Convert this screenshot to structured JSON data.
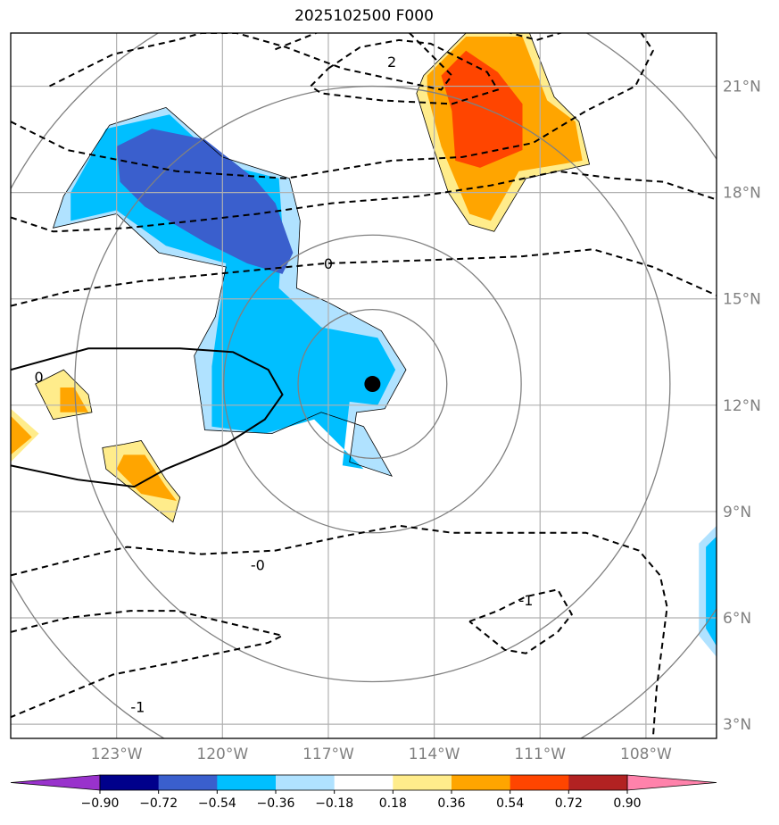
{
  "chart_data": {
    "type": "heatmap",
    "title": "2025102500 F000",
    "xlabel": "",
    "ylabel": "",
    "xlim": [
      -126,
      -106
    ],
    "ylim": [
      2.6,
      22.5
    ],
    "lon_ticks": [
      -123,
      -120,
      -117,
      -114,
      -111,
      -108
    ],
    "lon_labels": [
      "123°W",
      "120°W",
      "117°W",
      "114°W",
      "111°W",
      "108°W"
    ],
    "lat_ticks": [
      3,
      6,
      9,
      12,
      15,
      18,
      21
    ],
    "lat_labels": [
      "3°N",
      "6°N",
      "9°N",
      "12°N",
      "15°N",
      "18°N",
      "21°N"
    ],
    "grid": true,
    "center_marker": {
      "lon": -115.75,
      "lat": 12.6
    },
    "range_rings": [
      {
        "lat_radius": 2.1
      },
      {
        "lat_radius": 4.2
      },
      {
        "lat_radius": 8.4
      },
      {
        "lat_radius": 11.6
      }
    ],
    "colorbar": {
      "levels": [
        -0.9,
        -0.72,
        -0.54,
        -0.36,
        -0.18,
        0.18,
        0.36,
        0.54,
        0.72,
        0.9
      ],
      "labels": [
        "−0.90",
        "−0.72",
        "−0.54",
        "−0.36",
        "−0.18",
        "0.18",
        "0.36",
        "0.54",
        "0.72",
        "0.90"
      ],
      "colors": [
        "#9932cc",
        "#00008b",
        "#3a5fcd",
        "#00bfff",
        "#b0e2ff",
        "#ffffff",
        "#ffec8b",
        "#ffa500",
        "#ff4500",
        "#b22222",
        "#ff82ab"
      ],
      "extend": "both"
    },
    "contour_labels": [
      {
        "text": "2",
        "lon": -115.2,
        "lat": 21.7
      },
      {
        "text": "0",
        "lon": -117.0,
        "lat": 16.0
      },
      {
        "text": "0",
        "lon": -125.2,
        "lat": 12.8
      },
      {
        "text": "-0",
        "lon": -119.0,
        "lat": 7.5
      },
      {
        "text": "-1",
        "lon": -111.4,
        "lat": 6.5
      },
      {
        "text": "-1",
        "lon": -122.4,
        "lat": 3.5
      }
    ],
    "shaded_regions": [
      {
        "level": "-0.36 to -0.18",
        "color": "#b0e2ff",
        "lon": [
          -124.5,
          -123.2,
          -121.6,
          -120,
          -118.1,
          -117.8,
          -117.9,
          -117.0,
          -115.5,
          -114.8,
          -115.4,
          -116.2,
          -116.4,
          -115.2,
          -116.0,
          -116.6,
          -117.2,
          -118.6,
          -120.5,
          -120.8,
          -120.2,
          -119.9,
          -121.8,
          -123.0,
          -124.8
        ],
        "lat": [
          17.9,
          19.9,
          20.4,
          19.0,
          18.4,
          17.2,
          15.3,
          14.9,
          14.1,
          13.0,
          11.9,
          11.8,
          10.4,
          10.0,
          11.4,
          11.6,
          11.8,
          11.2,
          11.3,
          13.4,
          14.5,
          15.9,
          16.3,
          17.4,
          17.0
        ]
      },
      {
        "level": "-0.54 to -0.36",
        "color": "#00bfff",
        "lon": [
          -124.3,
          -123.3,
          -121.5,
          -120,
          -118.4,
          -118.3,
          -118.4,
          -117.2,
          -115.6,
          -115.1,
          -115.6,
          -116.4,
          -116.6,
          -116.0,
          -117.4,
          -118.8,
          -120.3,
          -120.3,
          -119.9,
          -121.6,
          -123.0,
          -124.3
        ],
        "lat": [
          18.0,
          19.8,
          20.2,
          18.8,
          18.4,
          17.0,
          15.3,
          14.2,
          13.9,
          13.0,
          12.0,
          12.1,
          10.3,
          10.2,
          11.6,
          11.2,
          11.4,
          13.1,
          16.0,
          16.5,
          17.5,
          17.2
        ]
      },
      {
        "level": "-0.72 to -0.54",
        "color": "#3a5fcd",
        "lon": [
          -123.0,
          -122.0,
          -120.5,
          -119.1,
          -118.5,
          -118.0,
          -118.3,
          -119.3,
          -120.5,
          -122.2,
          -122.9
        ],
        "lat": [
          19.3,
          19.8,
          19.5,
          18.4,
          17.7,
          16.3,
          15.7,
          16.0,
          16.6,
          17.6,
          18.3
        ]
      },
      {
        "level": "0.18 to 0.36",
        "color": "#ffec8b",
        "lon": [
          -114.3,
          -113.1,
          -111.3,
          -110.6,
          -109.9,
          -109.6,
          -111.4,
          -112.3,
          -113.0,
          -113.6,
          -114.1,
          -114.5,
          -114.3
        ],
        "lat": [
          21.3,
          22.5,
          22.5,
          20.7,
          20.0,
          18.8,
          18.4,
          16.9,
          17.1,
          18.0,
          19.5,
          20.8,
          21.3
        ]
      },
      {
        "level": "0.36 to 0.54",
        "color": "#ffa500",
        "lon": [
          -114.2,
          -113.1,
          -111.5,
          -110.8,
          -110.0,
          -109.8,
          -111.6,
          -112.4,
          -113.0,
          -113.8,
          -114.2
        ],
        "lat": [
          21.3,
          22.4,
          22.4,
          20.6,
          20.0,
          18.9,
          18.6,
          17.2,
          17.4,
          19.3,
          20.8
        ]
      },
      {
        "level": "0.54 to 0.72",
        "color": "#ff4500",
        "lon": [
          -113.8,
          -113.1,
          -112.2,
          -111.5,
          -111.5,
          -112.7,
          -113.4,
          -113.5,
          -113.8
        ],
        "lat": [
          21.3,
          22.0,
          21.4,
          20.5,
          19.2,
          18.7,
          18.9,
          20.3,
          21.3
        ]
      },
      {
        "level": "0.18 to 0.36",
        "color": "#ffec8b",
        "lon": [
          -122.8,
          -122.3,
          -121.6,
          -121.2,
          -121.4,
          -122.3,
          -123.3,
          -123.4,
          -122.8
        ],
        "lat": [
          10.9,
          11.0,
          9.9,
          9.4,
          8.7,
          9.4,
          10.2,
          10.8,
          10.9
        ]
      },
      {
        "level": "0.36 to 0.54",
        "color": "#ffa500",
        "lon": [
          -122.8,
          -122.2,
          -121.6,
          -121.3,
          -122.3,
          -123.0,
          -122.8
        ],
        "lat": [
          10.6,
          10.6,
          9.7,
          9.3,
          9.5,
          10.2,
          10.6
        ]
      },
      {
        "level": "0.18 to 0.36",
        "color": "#ffec8b",
        "lon": [
          -125.3,
          -124.5,
          -123.8,
          -123.7,
          -124.8,
          -125.3
        ],
        "lat": [
          12.6,
          13.0,
          12.3,
          11.8,
          11.6,
          12.6
        ]
      },
      {
        "level": "0.36 to 0.54",
        "color": "#ffa500",
        "lon": [
          -124.6,
          -124.2,
          -123.8,
          -124.6
        ],
        "lat": [
          12.5,
          12.5,
          11.8,
          11.8
        ]
      },
      {
        "level": "0.18 to 0.36",
        "color": "#ffec8b",
        "lon": [
          -126.0,
          -125.2,
          -126.0
        ],
        "lat": [
          11.9,
          11.2,
          10.4
        ]
      },
      {
        "level": "0.36 to 0.54",
        "color": "#ffa500",
        "lon": [
          -126.0,
          -125.4,
          -126.0
        ],
        "lat": [
          11.7,
          11.1,
          10.6
        ]
      },
      {
        "level": "-0.36 to -0.18",
        "color": "#b0e2ff",
        "lon": [
          -106.0,
          -106.5,
          -106.5,
          -106.0
        ],
        "lat": [
          8.6,
          8.1,
          5.5,
          4.9
        ]
      },
      {
        "level": "-0.54 to -0.36",
        "color": "#00bfff",
        "lon": [
          -106.0,
          -106.3,
          -106.3,
          -106.0
        ],
        "lat": [
          8.3,
          8.0,
          5.7,
          5.2
        ]
      }
    ],
    "contours": [
      {
        "style": "dashed",
        "lon": [
          -124.9,
          -123.1,
          -121.3,
          -120.6,
          -120.3,
          -119.6,
          -118.2,
          -116.6,
          -113.8,
          -113.5,
          -114.8,
          -117.1,
          -118.6
        ],
        "lat": [
          21.0,
          21.9,
          22.3,
          22.5,
          22.5,
          22.5,
          22.1,
          21.5,
          20.9,
          21.3,
          22.6,
          22.6,
          22.0
        ]
      },
      {
        "style": "dashed",
        "lon": [
          -117.0,
          -116.1,
          -115.0,
          -114.1,
          -113.3,
          -112.5,
          -112.2,
          -113.5,
          -115.5,
          -117.2,
          -117.5,
          -117.0
        ],
        "lat": [
          21.5,
          22.1,
          22.3,
          22.2,
          21.8,
          21.4,
          20.9,
          20.5,
          20.6,
          20.8,
          21.0,
          21.5
        ]
      },
      {
        "style": "dashed",
        "lon": [
          -126.0,
          -124.4,
          -121.3,
          -118.2,
          -115.2,
          -113.2,
          -111.2,
          -109.7,
          -108.3,
          -107.8,
          -108.2,
          -110.1,
          -111.1,
          -112.2,
          -113.9
        ],
        "lat": [
          20.0,
          19.2,
          18.6,
          18.4,
          18.9,
          19.0,
          19.4,
          20.3,
          21.0,
          22.0,
          22.6,
          22.6,
          22.3,
          22.6,
          22.6
        ]
      },
      {
        "style": "dashed",
        "lon": [
          -126.0,
          -124.8,
          -122.7,
          -120.8,
          -119.0,
          -116.9,
          -114.4,
          -112.4,
          -110.5,
          -108.9,
          -107.5,
          -106.0
        ],
        "lat": [
          17.3,
          16.9,
          17.0,
          17.2,
          17.4,
          17.7,
          17.9,
          18.2,
          18.6,
          18.4,
          18.3,
          17.8
        ]
      },
      {
        "style": "dashed",
        "lon": [
          -126.0,
          -124.4,
          -122.3,
          -120.2,
          -117.1,
          -114.0,
          -111.5,
          -109.5,
          -107.8,
          -106.0
        ],
        "lat": [
          14.8,
          15.2,
          15.5,
          15.7,
          16.0,
          16.1,
          16.2,
          16.4,
          15.9,
          15.1
        ]
      },
      {
        "style": "solid",
        "lon": [
          -126.0,
          -123.8,
          -121.2,
          -119.7,
          -118.7,
          -118.3,
          -118.8,
          -119.9,
          -121.6,
          -122.5,
          -124.1,
          -126.0
        ],
        "lat": [
          13.0,
          13.6,
          13.6,
          13.5,
          13.0,
          12.3,
          11.6,
          10.9,
          10.2,
          9.7,
          9.9,
          10.3
        ]
      },
      {
        "style": "dashed",
        "lon": [
          -126.0,
          -124.4,
          -122.7,
          -120.6,
          -118.5,
          -116.6,
          -115.0,
          -113.5,
          -111.5,
          -109.7,
          -108.2,
          -107.6,
          -107.4,
          -107.7,
          -107.8
        ],
        "lat": [
          7.2,
          7.6,
          8.0,
          7.8,
          7.9,
          8.3,
          8.6,
          8.4,
          8.4,
          8.4,
          7.9,
          7.2,
          6.3,
          4.0,
          2.6
        ]
      },
      {
        "style": "dashed",
        "lon": [
          -126.0,
          -124.4,
          -122.6,
          -121.3,
          -119.6,
          -118.3,
          -118.7,
          -121.1,
          -123.1,
          -126.0
        ],
        "lat": [
          5.6,
          6.0,
          6.2,
          6.2,
          5.8,
          5.5,
          5.3,
          4.8,
          4.4,
          3.2
        ]
      },
      {
        "style": "dashed",
        "lon": [
          -113.0,
          -112.2,
          -111.4,
          -110.5,
          -110.1,
          -110.5,
          -111.4,
          -112.0,
          -113.0
        ],
        "lat": [
          5.9,
          6.2,
          6.6,
          6.8,
          6.1,
          5.6,
          5.0,
          5.1,
          5.9
        ]
      }
    ]
  }
}
